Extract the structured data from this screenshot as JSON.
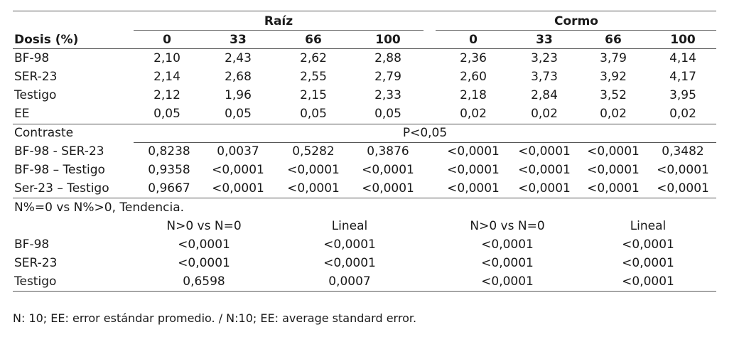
{
  "groups": {
    "raiz": "Raíz",
    "cormo": "Cormo"
  },
  "header": {
    "dosis": "Dosis (%)",
    "doses": [
      "0",
      "33",
      "66",
      "100"
    ]
  },
  "means": [
    {
      "label": "BF-98",
      "raiz": [
        "2,10",
        "2,43",
        "2,62",
        "2,88"
      ],
      "cormo": [
        "2,36",
        "3,23",
        "3,79",
        "4,14"
      ]
    },
    {
      "label": "SER-23",
      "raiz": [
        "2,14",
        "2,68",
        "2,55",
        "2,79"
      ],
      "cormo": [
        "2,60",
        "3,73",
        "3,92",
        "4,17"
      ]
    },
    {
      "label": "Testigo",
      "raiz": [
        "2,12",
        "1,96",
        "2,15",
        "2,33"
      ],
      "cormo": [
        "2,18",
        "2,84",
        "3,52",
        "3,95"
      ]
    },
    {
      "label": "EE",
      "raiz": [
        "0,05",
        "0,05",
        "0,05",
        "0,05"
      ],
      "cormo": [
        "0,02",
        "0,02",
        "0,02",
        "0,02"
      ]
    }
  ],
  "contrast": {
    "label": "Contraste",
    "pvalue": "P<0,05",
    "rows": [
      {
        "label": "BF-98 - SER-23",
        "values": [
          "0,8238",
          "0,0037",
          "0,5282",
          "0,3876",
          "<0,0001",
          "<0,0001",
          "<0,0001",
          "0,3482"
        ]
      },
      {
        "label": "BF-98 – Testigo",
        "values": [
          "0,9358",
          "<0,0001",
          "<0,0001",
          "<0,0001",
          "<0,0001",
          "<0,0001",
          "<0,0001",
          "<0,0001"
        ]
      },
      {
        "label": "Ser-23 – Testigo",
        "values": [
          "0,9667",
          "<0,0001",
          "<0,0001",
          "<0,0001",
          "<0,0001",
          "<0,0001",
          "<0,0001",
          "<0,0001"
        ]
      }
    ]
  },
  "trend": {
    "title": "N%=0 vs N%>0, Tendencia.",
    "headers": [
      "N>0 vs N=0",
      "Lineal",
      "N>0 vs N=0",
      "Lineal"
    ],
    "rows": [
      {
        "label": "BF-98",
        "values": [
          "<0,0001",
          "<0,0001",
          "<0,0001",
          "<0,0001"
        ]
      },
      {
        "label": "SER-23",
        "values": [
          "<0,0001",
          "<0,0001",
          "<0,0001",
          "<0,0001"
        ]
      },
      {
        "label": "Testigo",
        "values": [
          "0,6598",
          "0,0007",
          "<0,0001",
          "<0,0001"
        ]
      }
    ]
  },
  "footnote": "N: 10; EE: error estándar promedio. / N:10; EE: average standard error."
}
